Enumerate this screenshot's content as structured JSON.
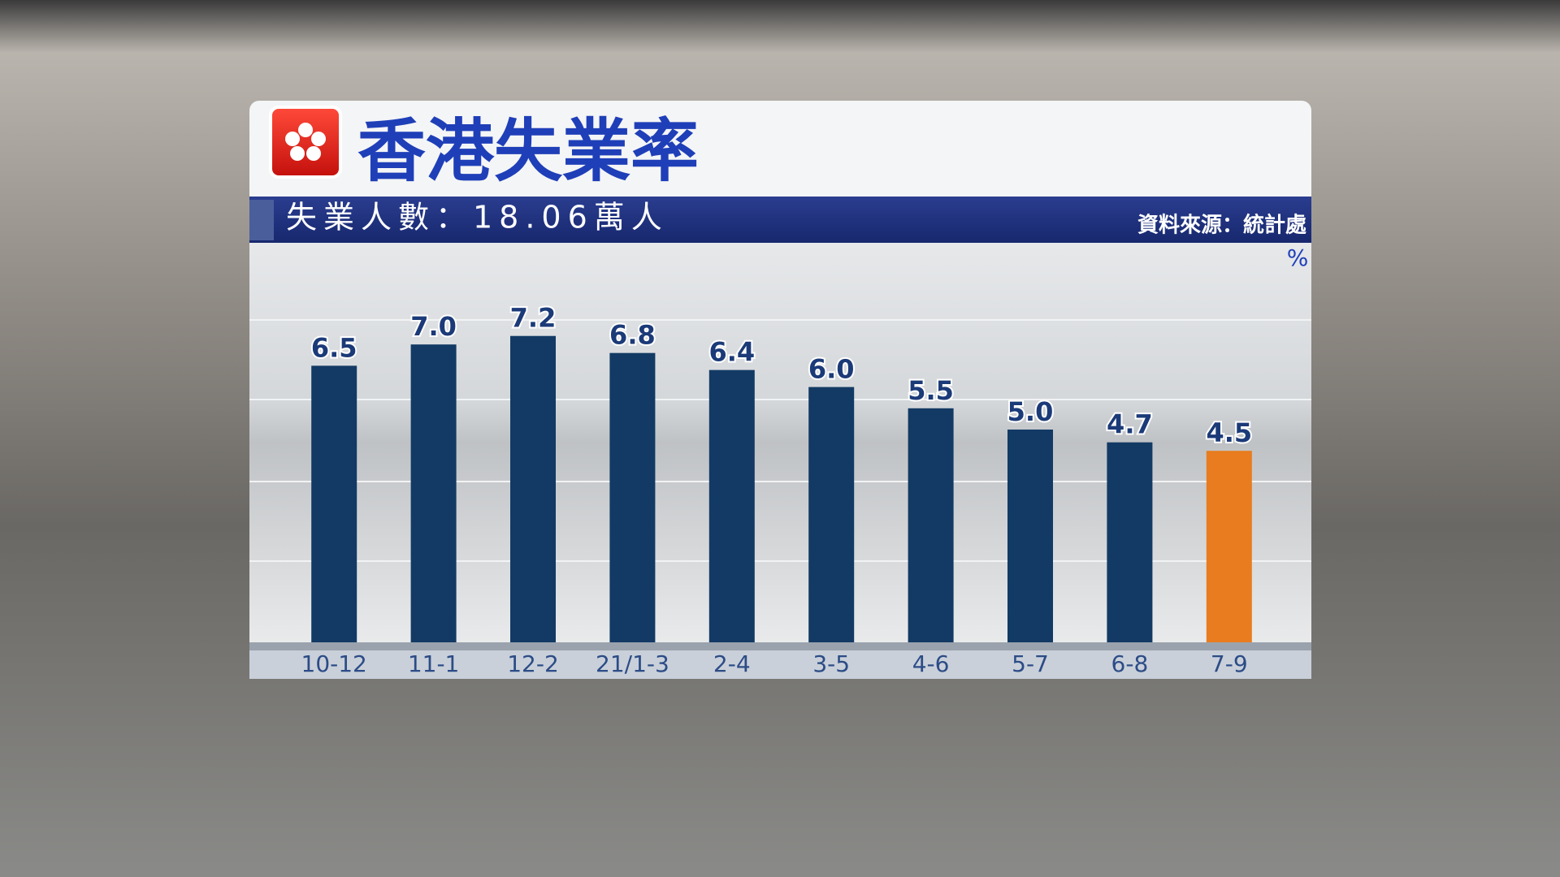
{
  "chart_data": {
    "type": "bar",
    "title": "香港失業率",
    "subtitle": "失業人數：18.06萬人",
    "source": "資料來源：統計處",
    "unit_label": "%",
    "categories": [
      "10-12",
      "11-1",
      "12-2",
      "21/1-3",
      "2-4",
      "3-5",
      "4-6",
      "5-7",
      "6-8",
      "7-9"
    ],
    "values": [
      6.5,
      7.0,
      7.2,
      6.8,
      6.4,
      6.0,
      5.5,
      5.0,
      4.7,
      4.5
    ],
    "value_labels": [
      "6.5",
      "7.0",
      "7.2",
      "6.8",
      "6.4",
      "6.0",
      "5.5",
      "5.0",
      "4.7",
      "4.5"
    ],
    "colors": [
      "#123a64",
      "#123a64",
      "#123a64",
      "#123a64",
      "#123a64",
      "#123a64",
      "#123a64",
      "#123a64",
      "#123a64",
      "#e87c1e"
    ],
    "ylim": [
      0,
      9
    ]
  }
}
